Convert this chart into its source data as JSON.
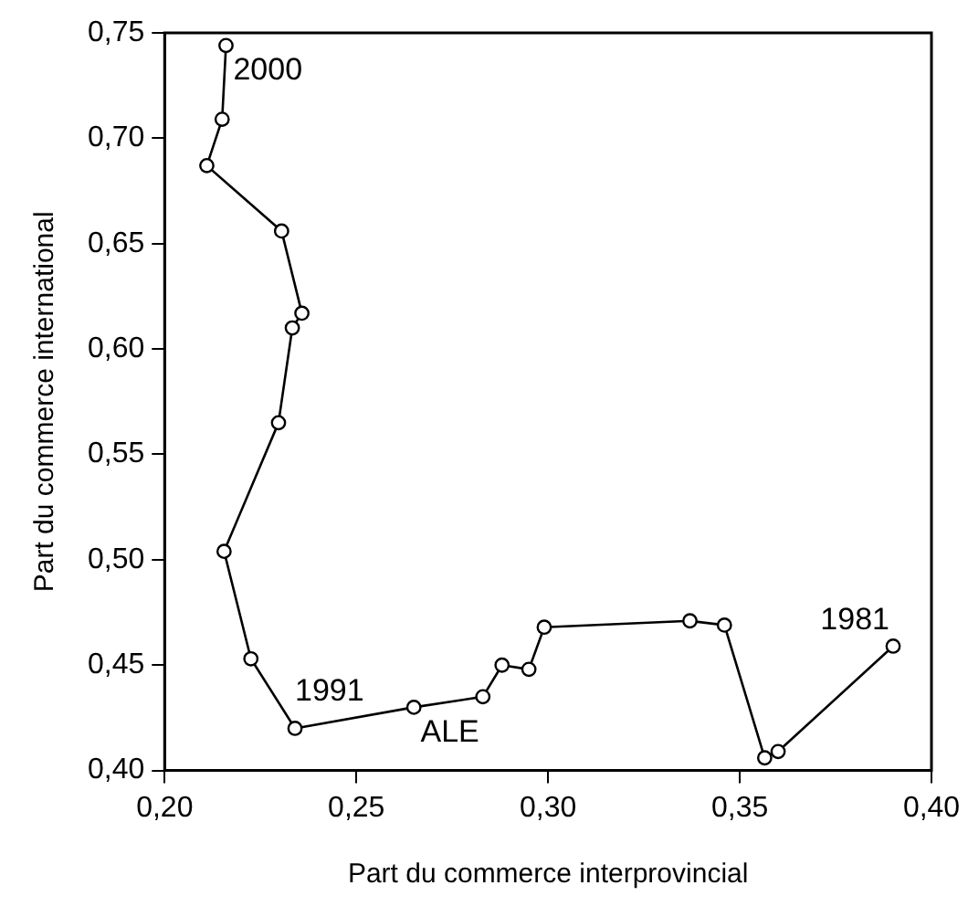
{
  "chart_data": {
    "type": "line",
    "xlabel": "Part du commerce interprovincial",
    "ylabel": "Part du commerce international",
    "series": [
      {
        "color": "#000000",
        "x": [
          0.39,
          0.36,
          0.3565,
          0.346,
          0.337,
          0.299,
          0.295,
          0.288,
          0.283,
          0.265,
          0.234,
          0.2225,
          0.2155,
          0.2297,
          0.2333,
          0.2358,
          0.2305,
          0.211,
          0.215,
          0.216
        ],
        "values": [
          0.459,
          0.409,
          0.406,
          0.469,
          0.471,
          0.468,
          0.448,
          0.45,
          0.435,
          0.43,
          0.42,
          0.453,
          0.504,
          0.565,
          0.61,
          0.617,
          0.656,
          0.687,
          0.709,
          0.744
        ]
      }
    ],
    "xlim": [
      0.2,
      0.4
    ],
    "ylim": [
      0.4,
      0.75
    ],
    "xticks": [
      {
        "value": 0.2,
        "label": "0,20"
      },
      {
        "value": 0.25,
        "label": "0,25"
      },
      {
        "value": 0.3,
        "label": "0,30"
      },
      {
        "value": 0.35,
        "label": "0,35"
      },
      {
        "value": 0.4,
        "label": "0,40"
      }
    ],
    "yticks": [
      {
        "value": 0.4,
        "label": "0,40"
      },
      {
        "value": 0.45,
        "label": "0,45"
      },
      {
        "value": 0.5,
        "label": "0,50"
      },
      {
        "value": 0.55,
        "label": "0,55"
      },
      {
        "value": 0.6,
        "label": "0,60"
      },
      {
        "value": 0.65,
        "label": "0,65"
      },
      {
        "value": 0.7,
        "label": "0,70"
      },
      {
        "value": 0.75,
        "label": "0,75"
      }
    ],
    "annotations": [
      {
        "text": "1981",
        "x": 0.39,
        "y": 0.459
      },
      {
        "text": "1991",
        "x": 0.234,
        "y": 0.42
      },
      {
        "text": "2000",
        "x": 0.216,
        "y": 0.744
      },
      {
        "text": "ALE",
        "x": 0.283,
        "y": 0.435
      }
    ],
    "marker": "circle",
    "line_style": "solid",
    "grid": false,
    "legend": false
  }
}
